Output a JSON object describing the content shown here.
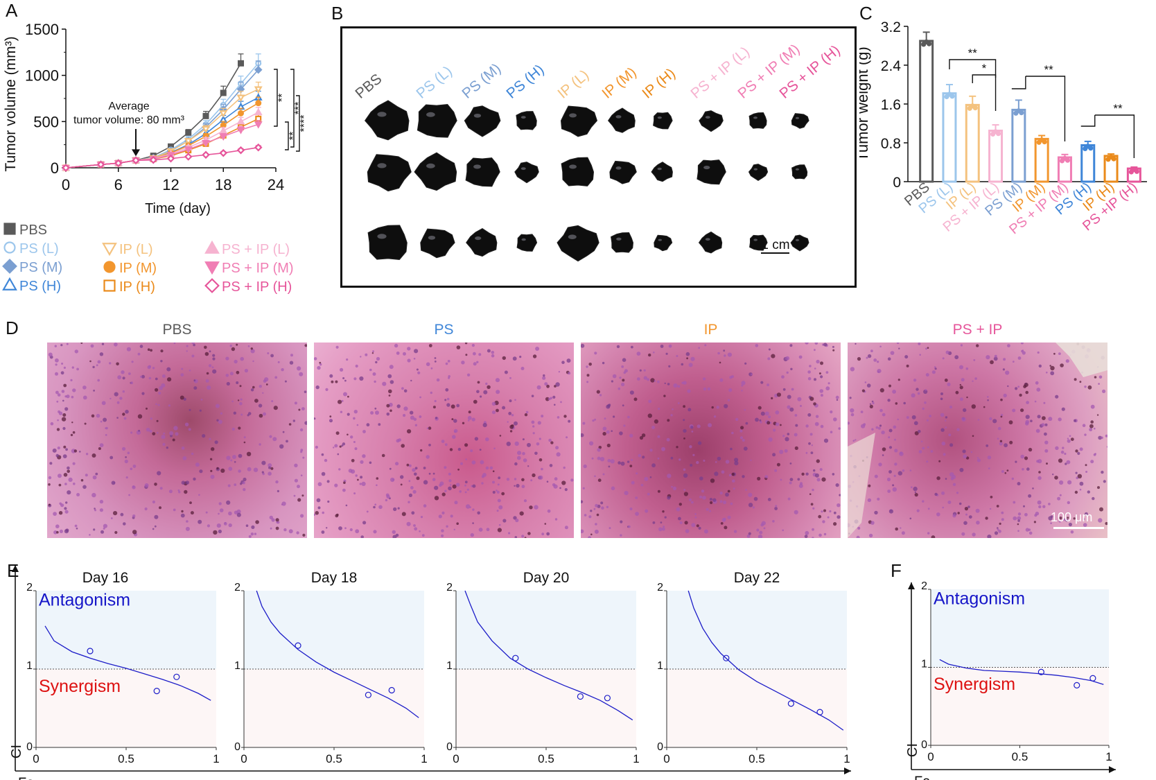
{
  "panels": {
    "A": "A",
    "B": "B",
    "C": "C",
    "D": "D",
    "E": "E",
    "F": "F"
  },
  "colors": {
    "pbs": "#5a5a5a",
    "ps_l": "#9cc6ec",
    "ps_m": "#7b9fd1",
    "ps_h": "#3f86d8",
    "ip_l": "#f4c27e",
    "ip_m": "#f2962e",
    "ip_h": "#ea8a1a",
    "psip_l": "#f6b3d0",
    "psip_m": "#f07eb4",
    "psip_h": "#e6559a",
    "curve": "#1c1cc8",
    "antagonism": "#1515c8",
    "synergism": "#dd1111",
    "antag_bg": "#eef5fb",
    "syn_bg": "#fdf6f6"
  },
  "chart_data": [
    {
      "id": "A",
      "type": "line",
      "xlabel": "Time (day)",
      "ylabel": "Tumor volume (mm³)",
      "xlim": [
        0,
        24
      ],
      "ylim": [
        0,
        1500
      ],
      "xticks": [
        "0",
        "6",
        "12",
        "18",
        "24"
      ],
      "yticks": [
        "0",
        "500",
        "1000",
        "1500"
      ],
      "annotation": {
        "lines": [
          "Average",
          "tumor volume: 80 mm³"
        ],
        "x": 8,
        "y": 80
      },
      "x": [
        0,
        4,
        6,
        8,
        10,
        12,
        14,
        16,
        18,
        20,
        22
      ],
      "series": [
        {
          "name": "PBS",
          "key": "pbs",
          "marker": "square-filled",
          "values": [
            0,
            35,
            50,
            80,
            130,
            230,
            380,
            560,
            810,
            1130,
            null
          ]
        },
        {
          "name": "PS (L)",
          "key": "ps_l",
          "marker": "circle-open",
          "values": [
            0,
            35,
            50,
            80,
            110,
            195,
            310,
            470,
            680,
            910,
            1130
          ]
        },
        {
          "name": "PS (M)",
          "key": "ps_m",
          "marker": "diamond-filled",
          "values": [
            0,
            35,
            50,
            80,
            105,
            185,
            290,
            440,
            630,
            850,
            1060
          ]
        },
        {
          "name": "PS (H)",
          "key": "ps_h",
          "marker": "triangle-open",
          "values": [
            0,
            35,
            50,
            80,
            100,
            165,
            250,
            370,
            520,
            660,
            760
          ]
        },
        {
          "name": "IP (L)",
          "key": "ip_l",
          "marker": "tri-down-open",
          "values": [
            0,
            35,
            50,
            80,
            105,
            180,
            290,
            420,
            590,
            760,
            850
          ]
        },
        {
          "name": "IP (M)",
          "key": "ip_m",
          "marker": "circle-filled",
          "values": [
            0,
            35,
            50,
            80,
            100,
            160,
            240,
            340,
            460,
            590,
            700
          ]
        },
        {
          "name": "IP (H)",
          "key": "ip_h",
          "marker": "square-open",
          "values": [
            0,
            35,
            50,
            80,
            95,
            130,
            190,
            260,
            350,
            440,
            530
          ]
        },
        {
          "name": "PS + IP (L)",
          "key": "psip_l",
          "marker": "triangle-filled",
          "values": [
            0,
            35,
            50,
            80,
            100,
            150,
            220,
            300,
            400,
            500,
            600
          ]
        },
        {
          "name": "PS + IP (M)",
          "key": "psip_m",
          "marker": "tri-down-filled",
          "values": [
            0,
            35,
            50,
            80,
            95,
            140,
            200,
            270,
            340,
            410,
            470
          ]
        },
        {
          "name": "PS + IP (H)",
          "key": "psip_h",
          "marker": "diamond-open",
          "values": [
            0,
            35,
            50,
            80,
            85,
            100,
            120,
            140,
            160,
            190,
            220
          ]
        }
      ],
      "significance": [
        "**",
        "***",
        "****",
        "**"
      ]
    },
    {
      "id": "C",
      "type": "bar",
      "ylabel": "Tumor weight (g)",
      "ylim": [
        0,
        3.2
      ],
      "yticks": [
        "0",
        "0.8",
        "1.6",
        "2.4",
        "3.2"
      ],
      "categories": [
        "PBS",
        "PS (L)",
        "IP (L)",
        "PS + IP (L)",
        "PS (M)",
        "IP (M)",
        "PS + IP (M)",
        "PS (H)",
        "IP (H)",
        "PS +IP (H)"
      ],
      "keys": [
        "pbs",
        "ps_l",
        "ip_l",
        "psip_l",
        "ps_m",
        "ip_m",
        "psip_m",
        "ps_h",
        "ip_h",
        "psip_h"
      ],
      "values": [
        2.9,
        1.82,
        1.58,
        1.05,
        1.48,
        0.88,
        0.5,
        0.75,
        0.53,
        0.27
      ],
      "errors": [
        0.18,
        0.18,
        0.18,
        0.12,
        0.2,
        0.07,
        0.06,
        0.08,
        0.04,
        0.03
      ],
      "significance": [
        "**",
        "*",
        "**",
        "**"
      ]
    },
    {
      "id": "E1",
      "type": "line",
      "title": "Day 16",
      "xlabel": "Fa",
      "ylabel": "CI",
      "xlim": [
        0,
        1
      ],
      "ylim": [
        0,
        2
      ],
      "xticks": [
        "0",
        "0.5",
        "1"
      ],
      "yticks": [
        "0",
        "1",
        "2"
      ],
      "curve_x": [
        0.05,
        0.1,
        0.2,
        0.3,
        0.4,
        0.5,
        0.6,
        0.7,
        0.8,
        0.9,
        0.97
      ],
      "curve_y": [
        1.55,
        1.36,
        1.22,
        1.14,
        1.07,
        1.01,
        0.94,
        0.87,
        0.79,
        0.69,
        0.6
      ],
      "points_x": [
        0.3,
        0.67,
        0.78
      ],
      "points_y": [
        1.23,
        0.72,
        0.9
      ]
    },
    {
      "id": "E2",
      "type": "line",
      "title": "Day 18",
      "xlabel": "",
      "ylabel": "",
      "xlim": [
        0,
        1
      ],
      "ylim": [
        0,
        2
      ],
      "xticks": [
        "0",
        "0.5",
        "1"
      ],
      "yticks": [
        "0",
        "1",
        "2"
      ],
      "curve_x": [
        0.07,
        0.1,
        0.15,
        0.2,
        0.3,
        0.4,
        0.5,
        0.6,
        0.7,
        0.8,
        0.9,
        0.97
      ],
      "curve_y": [
        2.0,
        1.8,
        1.6,
        1.46,
        1.25,
        1.09,
        0.96,
        0.85,
        0.74,
        0.63,
        0.5,
        0.38
      ],
      "points_x": [
        0.3,
        0.69,
        0.82
      ],
      "points_y": [
        1.3,
        0.67,
        0.73
      ]
    },
    {
      "id": "E3",
      "type": "line",
      "title": "Day 20",
      "xlabel": "",
      "ylabel": "",
      "xlim": [
        0,
        1
      ],
      "ylim": [
        0,
        2
      ],
      "xticks": [
        "0",
        "0.5",
        "1"
      ],
      "yticks": [
        "0",
        "1",
        "2"
      ],
      "curve_x": [
        0.05,
        0.08,
        0.12,
        0.2,
        0.3,
        0.4,
        0.5,
        0.6,
        0.7,
        0.8,
        0.9,
        0.98
      ],
      "curve_y": [
        2.0,
        1.82,
        1.6,
        1.36,
        1.14,
        1.0,
        0.89,
        0.79,
        0.7,
        0.6,
        0.47,
        0.35
      ],
      "points_x": [
        0.33,
        0.69,
        0.84
      ],
      "points_y": [
        1.14,
        0.65,
        0.63
      ]
    },
    {
      "id": "E4",
      "type": "line",
      "title": "Day 22",
      "xlabel": "",
      "ylabel": "",
      "xlim": [
        0,
        1
      ],
      "ylim": [
        0,
        2
      ],
      "xticks": [
        "0",
        "0.5",
        "1"
      ],
      "yticks": [
        "0",
        "1",
        "2"
      ],
      "curve_x": [
        0.12,
        0.15,
        0.2,
        0.25,
        0.3,
        0.4,
        0.5,
        0.6,
        0.7,
        0.8,
        0.9,
        0.98
      ],
      "curve_y": [
        2.0,
        1.78,
        1.52,
        1.34,
        1.2,
        0.99,
        0.84,
        0.72,
        0.6,
        0.48,
        0.35,
        0.22
      ],
      "points_x": [
        0.33,
        0.69,
        0.85
      ],
      "points_y": [
        1.14,
        0.56,
        0.45
      ]
    },
    {
      "id": "F",
      "type": "line",
      "title": "",
      "xlabel": "Fa",
      "ylabel": "CI",
      "xlim": [
        0,
        1
      ],
      "ylim": [
        0,
        2
      ],
      "xticks": [
        "0",
        "0.5",
        "1"
      ],
      "yticks": [
        "0",
        "1",
        "2"
      ],
      "curve_x": [
        0.05,
        0.1,
        0.2,
        0.3,
        0.4,
        0.5,
        0.6,
        0.7,
        0.8,
        0.9,
        0.97
      ],
      "curve_y": [
        1.1,
        1.04,
        0.99,
        0.96,
        0.95,
        0.94,
        0.92,
        0.9,
        0.87,
        0.83,
        0.78
      ],
      "points_x": [
        0.62,
        0.82,
        0.91
      ],
      "points_y": [
        0.94,
        0.77,
        0.86
      ]
    }
  ],
  "legend": {
    "columns": [
      [
        {
          "name": "PBS",
          "key": "pbs",
          "marker": "square-filled"
        },
        {
          "name": "PS (L)",
          "key": "ps_l",
          "marker": "circle-open"
        },
        {
          "name": "PS (M)",
          "key": "ps_m",
          "marker": "diamond-filled"
        },
        {
          "name": "PS (H)",
          "key": "ps_h",
          "marker": "triangle-open"
        }
      ],
      [
        {
          "name": "IP (L)",
          "key": "ip_l",
          "marker": "tri-down-open"
        },
        {
          "name": "IP (M)",
          "key": "ip_m",
          "marker": "circle-filled"
        },
        {
          "name": "IP (H)",
          "key": "ip_h",
          "marker": "square-open"
        }
      ],
      [
        {
          "name": "PS + IP (L)",
          "key": "psip_l",
          "marker": "triangle-filled"
        },
        {
          "name": "PS + IP (M)",
          "key": "psip_m",
          "marker": "tri-down-filled"
        },
        {
          "name": "PS + IP (H)",
          "key": "psip_h",
          "marker": "diamond-open"
        }
      ]
    ]
  },
  "panel_b": {
    "labels": [
      {
        "text": "PBS",
        "key": "pbs"
      },
      {
        "text": "PS (L)",
        "key": "ps_l"
      },
      {
        "text": "PS (M)",
        "key": "ps_m"
      },
      {
        "text": "PS (H)",
        "key": "ps_h"
      },
      {
        "text": "IP (L)",
        "key": "ip_l"
      },
      {
        "text": "IP (M)",
        "key": "ip_m"
      },
      {
        "text": "IP (H)",
        "key": "ip_h"
      },
      {
        "text": "PS + IP (L)",
        "key": "psip_l"
      },
      {
        "text": "PS + IP (M)",
        "key": "psip_m"
      },
      {
        "text": "PS + IP (H)",
        "key": "psip_h"
      }
    ],
    "tumor_scale": [
      [
        1.0,
        0.95,
        0.75,
        0.45,
        0.8,
        0.55,
        0.38,
        0.45,
        0.36,
        0.3
      ],
      [
        1.0,
        0.95,
        0.8,
        0.45,
        0.8,
        0.55,
        0.4,
        0.65,
        0.32,
        0.3
      ],
      [
        1.0,
        0.75,
        0.65,
        0.4,
        0.9,
        0.5,
        0.32,
        0.45,
        0.34,
        0.3
      ]
    ],
    "scale_bar": "1 cm"
  },
  "panel_d": {
    "titles": [
      {
        "text": "PBS",
        "key": "pbs"
      },
      {
        "text": "PS",
        "key": "ps_h"
      },
      {
        "text": "IP",
        "key": "ip_m"
      },
      {
        "text": "PS + IP",
        "key": "psip_h"
      }
    ],
    "scale_bar": "100 μm"
  },
  "regions": {
    "antagonism": "Antagonism",
    "synergism": "Synergism"
  }
}
